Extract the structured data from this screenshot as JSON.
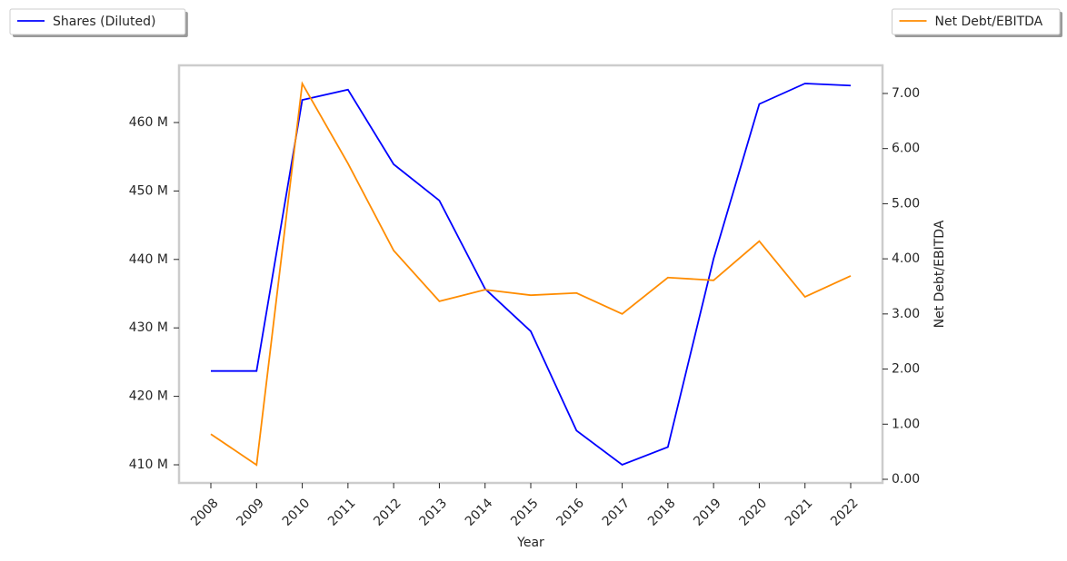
{
  "chart_data": {
    "type": "line",
    "x_label": "Year",
    "y2_label": "Net Debt/EBITDA",
    "categories": [
      "2008",
      "2009",
      "2010",
      "2011",
      "2012",
      "2013",
      "2014",
      "2015",
      "2016",
      "2017",
      "2018",
      "2019",
      "2020",
      "2021",
      "2022"
    ],
    "series": [
      {
        "name": "Shares (Diluted)",
        "color": "#0000ff",
        "axis": "y",
        "legend": "upper left",
        "values": [
          423.7,
          423.7,
          463.3,
          464.8,
          453.9,
          448.6,
          435.7,
          429.5,
          415.0,
          410.0,
          412.6,
          440.1,
          462.7,
          465.7,
          465.4
        ]
      },
      {
        "name": "Net Debt/EBITDA",
        "color": "#ff8c00",
        "axis": "y2",
        "legend": "upper right",
        "values": [
          0.82,
          0.26,
          7.18,
          5.73,
          4.15,
          3.23,
          3.44,
          3.34,
          3.38,
          3.0,
          3.66,
          3.61,
          4.32,
          3.31,
          3.69
        ]
      }
    ],
    "ylim": [
      407.35,
      468.35
    ],
    "yticks": [
      {
        "value": 410,
        "label": "410 M"
      },
      {
        "value": 420,
        "label": "420 M"
      },
      {
        "value": 430,
        "label": "430 M"
      },
      {
        "value": 440,
        "label": "440 M"
      },
      {
        "value": 450,
        "label": "450 M"
      },
      {
        "value": 460,
        "label": "460 M"
      }
    ],
    "y2lim": [
      -0.066,
      7.51
    ],
    "y2ticks": [
      {
        "value": 0,
        "label": "0.00"
      },
      {
        "value": 1,
        "label": "1.00"
      },
      {
        "value": 2,
        "label": "2.00"
      },
      {
        "value": 3,
        "label": "3.00"
      },
      {
        "value": 4,
        "label": "4.00"
      },
      {
        "value": 5,
        "label": "5.00"
      },
      {
        "value": 6,
        "label": "6.00"
      },
      {
        "value": 7,
        "label": "7.00"
      }
    ],
    "grid": false
  }
}
